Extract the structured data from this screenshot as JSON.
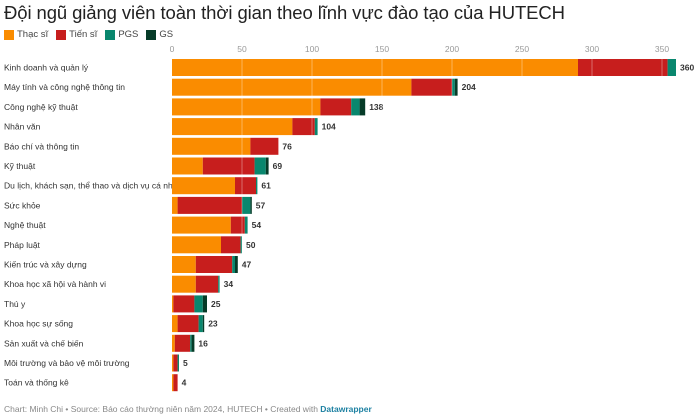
{
  "chart_data": {
    "type": "bar",
    "orientation": "horizontal",
    "stacked": true,
    "title": "Đội ngũ giảng viên toàn thời gian theo lĩnh vực đào tạo của HUTECH",
    "xlabel": "",
    "ylabel": "",
    "xlim": [
      0,
      360
    ],
    "xticks": [
      "0",
      "50",
      "100",
      "150",
      "200",
      "250",
      "300",
      "350"
    ],
    "xtick_values": [
      0,
      50,
      100,
      150,
      200,
      250,
      300,
      350
    ],
    "grid": true,
    "legend_position": "top-left",
    "categories": [
      "Kinh doanh và quản lý",
      "Máy tính và công nghệ thông tin",
      "Công nghệ kỹ thuật",
      "Nhân văn",
      "Báo chí và thông tin",
      "Kỹ thuật",
      "Du lịch, khách sạn, thể thao và dịch vụ cá nhân",
      "Sức khỏe",
      "Nghệ thuật",
      "Pháp luật",
      "Kiến trúc và xây dựng",
      "Khoa học xã hội và hành vi",
      "Thú y",
      "Khoa học sự sống",
      "Sản xuất và chế biến",
      "Môi trường và bảo vệ môi trường",
      "Toán và thống kê"
    ],
    "series": [
      {
        "name": "Thạc sĩ",
        "color": "#fa8c00",
        "values": [
          290,
          171,
          106,
          86,
          56,
          22,
          45,
          4,
          42,
          35,
          17,
          17,
          1,
          4,
          2,
          1,
          1
        ]
      },
      {
        "name": "Tiến sĩ",
        "color": "#c71e1d",
        "values": [
          64,
          29,
          22,
          16,
          20,
          37,
          15,
          46,
          10,
          14,
          26,
          16,
          15,
          15,
          11,
          3,
          3
        ]
      },
      {
        "name": "PGS",
        "color": "#09876e",
        "values": [
          6,
          2,
          6,
          2,
          0,
          8,
          1,
          6,
          2,
          1,
          2,
          1,
          6,
          3,
          1,
          1,
          0
        ]
      },
      {
        "name": "GS",
        "color": "#063b28",
        "values": [
          0,
          2,
          4,
          0,
          0,
          2,
          0,
          1,
          0,
          0,
          2,
          0,
          3,
          1,
          2,
          0,
          0
        ]
      }
    ],
    "totals": [
      "360",
      "204",
      "138",
      "104",
      "76",
      "69",
      "61",
      "57",
      "54",
      "50",
      "47",
      "34",
      "25",
      "23",
      "16",
      "5",
      "4"
    ]
  },
  "footer": {
    "credit": "Chart: Minh Chi • Source: Báo cáo thường niên năm 2024, HUTECH • Created with ",
    "tool": "Datawrapper"
  }
}
